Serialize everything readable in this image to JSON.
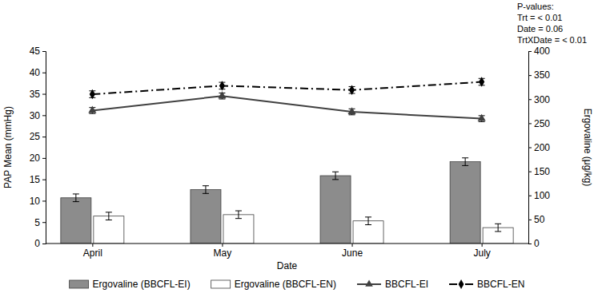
{
  "chart_data": {
    "type": "combo",
    "x_label": "Date",
    "y_label": "PAP Mean (mmHg)",
    "y2_label": "Ergovaline (μg/kg)",
    "annotations": [
      "P-values:",
      "Trt = < 0.01",
      "Date = 0.06",
      "TrtXDate = < 0.01"
    ],
    "categories": [
      "April",
      "May",
      "June",
      "July"
    ],
    "ylim": [
      0,
      45
    ],
    "yticks": [
      0,
      5,
      10,
      15,
      20,
      25,
      30,
      35,
      40,
      45
    ],
    "y2lim": [
      0,
      400
    ],
    "y2ticks": [
      0,
      50,
      100,
      150,
      200,
      250,
      300,
      350,
      400
    ],
    "legend": "bottom",
    "series": [
      {
        "name": "Ergovaline (BBCFL-EI)",
        "type": "bar",
        "axis": "y2",
        "color": "#8c8c8c",
        "values": [
          95,
          112,
          141,
          170
        ],
        "errors": [
          8,
          8,
          8,
          8
        ]
      },
      {
        "name": "Ergovaline (BBCFL-EN)",
        "type": "bar",
        "axis": "y2",
        "color": "#ffffff",
        "values": [
          57,
          60,
          47,
          33
        ],
        "errors": [
          8,
          8,
          8,
          8
        ]
      },
      {
        "name": "BBCFL-EI",
        "type": "line",
        "color": "#404040",
        "marker": "triangle",
        "line_style": "solid",
        "values": [
          31.1,
          34.5,
          30.8,
          29.2
        ],
        "errors": [
          0.7,
          0.7,
          0.7,
          0.7
        ]
      },
      {
        "name": "BBCFL-EN",
        "type": "line",
        "color": "#000000",
        "marker": "diamond",
        "line_style": "dashdot",
        "values": [
          34.9,
          36.9,
          35.9,
          37.8
        ],
        "errors": [
          0.8,
          0.8,
          0.8,
          0.8
        ]
      }
    ]
  }
}
